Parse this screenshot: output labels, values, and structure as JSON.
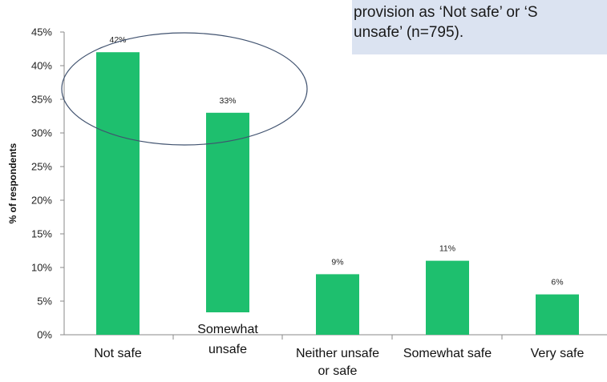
{
  "callout": {
    "line1": "provision as ‘Not safe’ or ‘S",
    "line2": "unsafe’ (n=795)."
  },
  "chart_data": {
    "type": "bar",
    "ylabel": "% of respondents",
    "xlabel": "",
    "ylim": [
      0,
      45
    ],
    "yticks": [
      "0%",
      "5%",
      "10%",
      "15%",
      "20%",
      "25%",
      "30%",
      "35%",
      "40%",
      "45%"
    ],
    "categories": [
      [
        "Not safe"
      ],
      [
        "Somewhat",
        "unsafe"
      ],
      [
        "Neither unsafe",
        "or safe"
      ],
      [
        "Somewhat safe"
      ],
      [
        "Very safe"
      ]
    ],
    "values": [
      42,
      33,
      9,
      11,
      6
    ],
    "data_labels": [
      "42%",
      "33%",
      "9%",
      "11%",
      "6%"
    ],
    "bar_color": "#1ebf6e",
    "grid": false,
    "legend": "none",
    "annotations": [
      "ellipse highlighting the first two bars"
    ]
  }
}
